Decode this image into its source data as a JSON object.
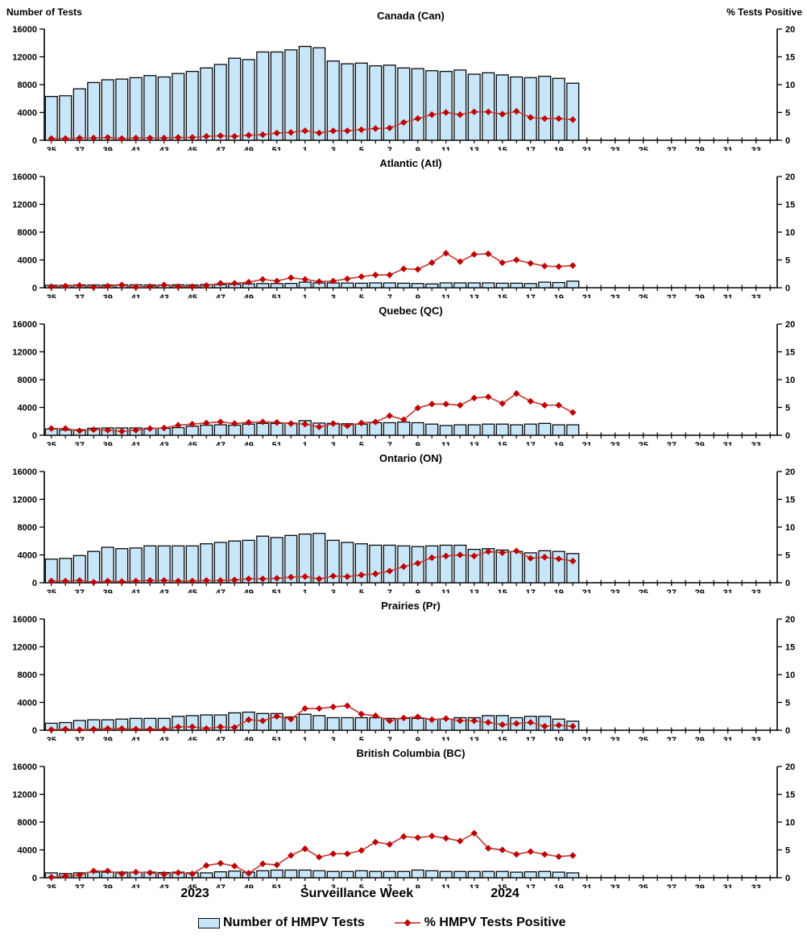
{
  "header": {
    "left_axis_title": "Number of Tests",
    "right_axis_title": "% Tests Positive"
  },
  "bottom": {
    "year_left": "2023",
    "x_axis_title": "Surveillance Week",
    "year_right": "2024"
  },
  "legend": {
    "bar_label": "Number of HMPV Tests",
    "line_label": "% HMPV Tests Positive"
  },
  "colors": {
    "bar_fill": "#C8E6F9",
    "bar_stroke": "#0A0A0A",
    "line_color": "#C4403C",
    "marker_color": "#C00000",
    "axis_color": "#000000"
  },
  "chart_data": {
    "type": "bar+line",
    "x_label": "Surveillance Week",
    "y_left_label": "Number of Tests",
    "y_right_label": "% Tests Positive",
    "y_left_max": 16000,
    "y_right_max": 20,
    "y_left_ticks": [
      "16000",
      "12000",
      "8000",
      "4000",
      "0"
    ],
    "y_right_ticks": [
      "20",
      "15",
      "10",
      "5",
      "0"
    ],
    "n_slots": 52,
    "x_tick_labels": [
      "35",
      "37",
      "39",
      "41",
      "43",
      "45",
      "47",
      "49",
      "51",
      "1",
      "3",
      "5",
      "7",
      "9",
      "11",
      "13",
      "15",
      "17",
      "19",
      "21",
      "23",
      "25",
      "27",
      "29",
      "31",
      "33"
    ],
    "data_weeks": [
      "35",
      "36",
      "37",
      "38",
      "39",
      "40",
      "41",
      "42",
      "43",
      "44",
      "45",
      "46",
      "47",
      "48",
      "49",
      "50",
      "51",
      "52",
      "1",
      "2",
      "3",
      "4",
      "5",
      "6",
      "7",
      "8",
      "9",
      "10",
      "11",
      "12",
      "13",
      "14",
      "15",
      "16",
      "17",
      "18",
      "19",
      "20"
    ],
    "panels": [
      {
        "title": "Canada (Can)",
        "tests": [
          6300,
          6400,
          7400,
          8300,
          8700,
          8800,
          9000,
          9300,
          9100,
          9600,
          9900,
          10400,
          10900,
          11800,
          11600,
          12700,
          12700,
          13000,
          13500,
          13300,
          11400,
          11000,
          11100,
          10700,
          10800,
          10400,
          10300,
          10000,
          9900,
          10100,
          9500,
          9700,
          9400,
          9100,
          9000,
          9200,
          8900,
          8200
        ],
        "pct_positive": [
          0.3,
          0.3,
          0.4,
          0.4,
          0.5,
          0.3,
          0.4,
          0.4,
          0.4,
          0.5,
          0.5,
          0.7,
          0.8,
          0.7,
          0.9,
          1.0,
          1.3,
          1.4,
          1.7,
          1.3,
          1.7,
          1.7,
          1.9,
          2.1,
          2.2,
          3.2,
          3.9,
          4.6,
          5.0,
          4.6,
          5.1,
          5.1,
          4.7,
          5.2,
          4.1,
          3.9,
          3.9,
          3.7
        ]
      },
      {
        "title": "Atlantic (Atl)",
        "tests": [
          350,
          350,
          400,
          400,
          400,
          420,
          420,
          400,
          400,
          420,
          400,
          450,
          450,
          500,
          550,
          600,
          600,
          620,
          800,
          700,
          700,
          680,
          650,
          700,
          700,
          650,
          600,
          550,
          700,
          700,
          700,
          700,
          650,
          650,
          600,
          800,
          750,
          950
        ],
        "pct_positive": [
          0.2,
          0.3,
          0.4,
          0.1,
          0.3,
          0.5,
          0.1,
          0.2,
          0.5,
          0.2,
          0.2,
          0.4,
          0.8,
          0.8,
          1.0,
          1.5,
          1.2,
          1.8,
          1.5,
          1.1,
          1.2,
          1.6,
          2.0,
          2.3,
          2.3,
          3.4,
          3.3,
          4.5,
          6.2,
          4.7,
          6.0,
          6.1,
          4.5,
          5.0,
          4.4,
          3.9,
          3.8,
          4.0
        ]
      },
      {
        "title": "Quebec (QC)",
        "tests": [
          900,
          750,
          800,
          1000,
          1050,
          1050,
          1050,
          1000,
          1000,
          1100,
          1300,
          1450,
          1500,
          1450,
          1600,
          1700,
          1700,
          1750,
          2100,
          1750,
          1700,
          1650,
          1600,
          1800,
          1800,
          1900,
          1800,
          1600,
          1400,
          1500,
          1500,
          1600,
          1600,
          1500,
          1600,
          1700,
          1500,
          1500
        ],
        "pct_positive": [
          1.2,
          1.2,
          0.8,
          1.0,
          0.9,
          0.7,
          0.9,
          1.2,
          1.3,
          1.8,
          2.0,
          2.2,
          2.4,
          2.1,
          2.3,
          2.4,
          2.3,
          2.1,
          2.0,
          1.5,
          2.1,
          1.7,
          2.2,
          2.4,
          3.5,
          2.8,
          4.9,
          5.6,
          5.6,
          5.4,
          6.7,
          6.9,
          5.7,
          7.5,
          6.1,
          5.4,
          5.4,
          4.1
        ]
      },
      {
        "title": "Ontario (ON)",
        "tests": [
          3400,
          3500,
          3900,
          4500,
          5100,
          4900,
          5000,
          5300,
          5300,
          5300,
          5300,
          5600,
          5800,
          6000,
          6100,
          6700,
          6500,
          6800,
          7000,
          7100,
          6100,
          5800,
          5600,
          5400,
          5400,
          5300,
          5200,
          5300,
          5400,
          5400,
          4800,
          4900,
          4700,
          4500,
          4300,
          4600,
          4500,
          4200
        ],
        "pct_positive": [
          0.3,
          0.3,
          0.4,
          0.1,
          0.3,
          0.2,
          0.3,
          0.4,
          0.4,
          0.3,
          0.3,
          0.4,
          0.4,
          0.5,
          0.7,
          0.7,
          0.8,
          1.0,
          1.1,
          0.7,
          1.2,
          1.1,
          1.4,
          1.6,
          2.1,
          2.9,
          3.5,
          4.5,
          4.8,
          5.0,
          4.8,
          5.6,
          5.4,
          5.7,
          4.4,
          4.6,
          4.3,
          3.9
        ]
      },
      {
        "title": "Prairies (Pr)",
        "tests": [
          1000,
          1100,
          1400,
          1500,
          1500,
          1600,
          1700,
          1700,
          1700,
          2000,
          2100,
          2200,
          2200,
          2500,
          2600,
          2400,
          2400,
          1900,
          2300,
          2100,
          1800,
          1800,
          1800,
          1800,
          1700,
          1700,
          1700,
          1600,
          1600,
          1800,
          1800,
          2100,
          2100,
          1800,
          2000,
          2000,
          1600,
          1300
        ],
        "pct_positive": [
          0.1,
          0.2,
          0.1,
          0.2,
          0.3,
          0.3,
          0.2,
          0.2,
          0.2,
          0.6,
          0.6,
          0.3,
          0.6,
          0.5,
          1.9,
          1.7,
          2.5,
          2.0,
          3.9,
          3.9,
          4.2,
          4.4,
          2.9,
          2.6,
          1.7,
          2.2,
          2.4,
          1.9,
          2.1,
          1.7,
          1.7,
          1.4,
          1.0,
          1.2,
          1.4,
          0.7,
          0.9,
          0.7
        ]
      },
      {
        "title": "British Columbia (BC)",
        "tests": [
          700,
          600,
          700,
          800,
          800,
          800,
          800,
          800,
          750,
          800,
          700,
          700,
          850,
          950,
          800,
          1000,
          1100,
          1100,
          1100,
          1000,
          900,
          900,
          1000,
          900,
          900,
          900,
          1100,
          1000,
          900,
          900,
          900,
          900,
          900,
          800,
          850,
          900,
          800,
          700
        ],
        "pct_positive": [
          0.1,
          0.3,
          0.5,
          1.2,
          1.2,
          0.7,
          1.0,
          0.9,
          0.6,
          0.9,
          0.7,
          2.2,
          2.6,
          2.1,
          0.8,
          2.5,
          2.3,
          4.0,
          5.2,
          3.7,
          4.3,
          4.3,
          4.9,
          6.4,
          6.0,
          7.4,
          7.2,
          7.5,
          7.1,
          6.6,
          8.0,
          5.3,
          5.0,
          4.2,
          4.7,
          4.2,
          3.8,
          4.0
        ]
      }
    ]
  }
}
